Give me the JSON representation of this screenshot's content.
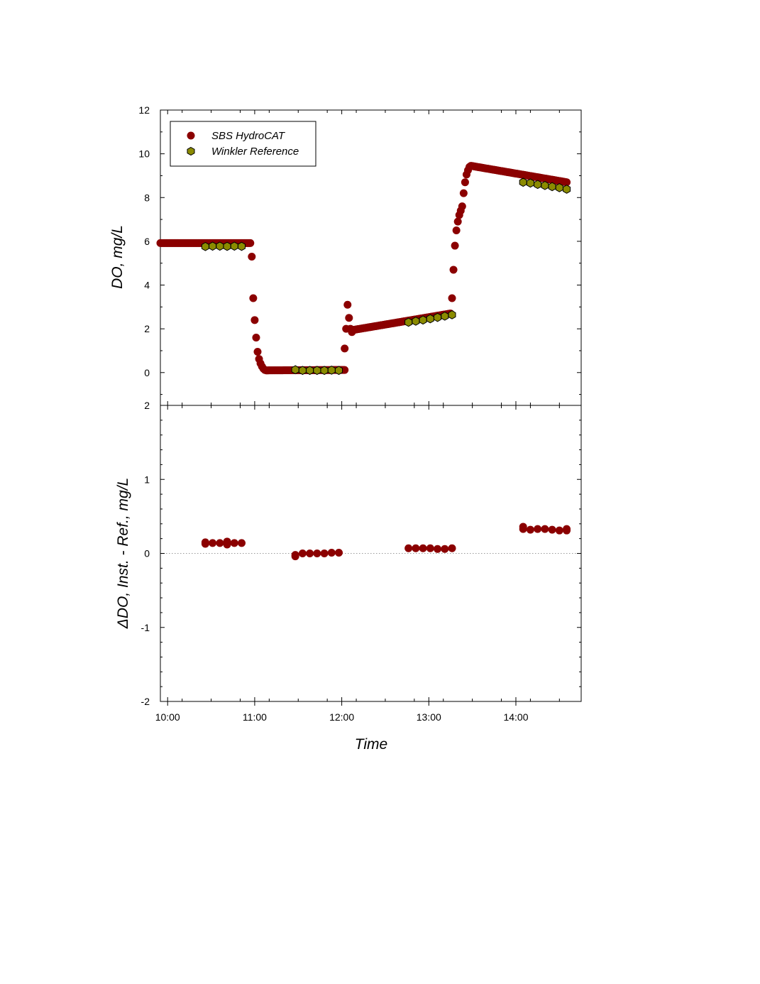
{
  "chart_data": [
    {
      "type": "scatter",
      "panel": "top",
      "xlabel": "",
      "ylabel": "DO, mg/L",
      "ylim": [
        -1.5,
        12
      ],
      "yticks": [
        0,
        2,
        4,
        6,
        8,
        10,
        12
      ],
      "xlim": [
        "09:55",
        "14:45"
      ],
      "legend": {
        "placement": "top-left",
        "entries": [
          "SBS HydroCAT",
          "Winkler Reference"
        ]
      },
      "colors": {
        "hydrocat": "#8b0000",
        "winkler": "#8b8b00"
      },
      "series": [
        {
          "name": "SBS HydroCAT",
          "segments": [
            {
              "start": "09:55",
              "end": "10:57",
              "values": [
                5.92,
                5.92
              ]
            },
            {
              "points": [
                [
                  "10:58",
                  5.3
                ],
                [
                  "10:59",
                  3.4
                ],
                [
                  "11:00",
                  2.4
                ],
                [
                  "11:01",
                  1.6
                ],
                [
                  "11:02",
                  0.95
                ],
                [
                  "11:03",
                  0.62
                ],
                [
                  "11:04",
                  0.42
                ],
                [
                  "11:05",
                  0.28
                ],
                [
                  "11:06",
                  0.18
                ],
                [
                  "11:07",
                  0.12
                ]
              ]
            },
            {
              "start": "11:08",
              "end": "12:02",
              "values": [
                0.1,
                0.12
              ]
            },
            {
              "points": [
                [
                  "12:02",
                  1.1
                ],
                [
                  "12:03",
                  2.0
                ],
                [
                  "12:04",
                  3.1
                ],
                [
                  "12:05",
                  2.5
                ],
                [
                  "12:06",
                  2.0
                ],
                [
                  "12:07",
                  1.85
                ]
              ]
            },
            {
              "start": "12:08",
              "end": "13:15",
              "values": [
                1.95,
                2.7
              ]
            },
            {
              "points": [
                [
                  "13:16",
                  3.4
                ],
                [
                  "13:17",
                  4.7
                ],
                [
                  "13:18",
                  5.8
                ],
                [
                  "13:19",
                  6.5
                ],
                [
                  "13:20",
                  6.9
                ],
                [
                  "13:21",
                  7.2
                ],
                [
                  "13:22",
                  7.4
                ],
                [
                  "13:23",
                  7.6
                ],
                [
                  "13:24",
                  8.2
                ],
                [
                  "13:25",
                  8.7
                ],
                [
                  "13:26",
                  9.05
                ],
                [
                  "13:27",
                  9.25
                ],
                [
                  "13:28",
                  9.4
                ]
              ]
            },
            {
              "start": "13:29",
              "end": "14:35",
              "values": [
                9.45,
                8.7
              ]
            }
          ]
        },
        {
          "name": "Winkler Reference",
          "points": [
            [
              "10:26",
              5.76
            ],
            [
              "10:31",
              5.78
            ],
            [
              "10:36",
              5.78
            ],
            [
              "10:41",
              5.77
            ],
            [
              "10:46",
              5.78
            ],
            [
              "10:51",
              5.77
            ],
            [
              "11:28",
              0.13
            ],
            [
              "11:33",
              0.1
            ],
            [
              "11:38",
              0.1
            ],
            [
              "11:43",
              0.1
            ],
            [
              "11:48",
              0.1
            ],
            [
              "11:53",
              0.11
            ],
            [
              "11:58",
              0.1
            ],
            [
              "12:46",
              2.3
            ],
            [
              "12:51",
              2.35
            ],
            [
              "12:56",
              2.4
            ],
            [
              "13:01",
              2.46
            ],
            [
              "13:06",
              2.52
            ],
            [
              "13:11",
              2.58
            ],
            [
              "13:16",
              2.64
            ],
            [
              "14:05",
              8.7
            ],
            [
              "14:10",
              8.66
            ],
            [
              "14:15",
              8.6
            ],
            [
              "14:20",
              8.55
            ],
            [
              "14:25",
              8.5
            ],
            [
              "14:30",
              8.45
            ],
            [
              "14:35",
              8.38
            ]
          ]
        }
      ]
    },
    {
      "type": "scatter",
      "panel": "bottom",
      "xlabel": "Time",
      "ylabel": "ΔDO, Inst. - Ref., mg/L",
      "ylim": [
        -2,
        2
      ],
      "yticks": [
        -2,
        -1,
        0,
        1,
        2
      ],
      "xlim": [
        "09:55",
        "14:45"
      ],
      "xticks": [
        "10:00",
        "11:00",
        "12:00",
        "13:00",
        "14:00"
      ],
      "reference_line": 0,
      "series": [
        {
          "name": "",
          "points": [
            [
              "10:26",
              0.15
            ],
            [
              "10:26",
              0.13
            ],
            [
              "10:31",
              0.14
            ],
            [
              "10:36",
              0.14
            ],
            [
              "10:41",
              0.16
            ],
            [
              "10:41",
              0.12
            ],
            [
              "10:46",
              0.14
            ],
            [
              "10:51",
              0.14
            ],
            [
              "11:28",
              -0.04
            ],
            [
              "11:28",
              -0.02
            ],
            [
              "11:33",
              0.0
            ],
            [
              "11:38",
              0.0
            ],
            [
              "11:43",
              0.0
            ],
            [
              "11:48",
              0.0
            ],
            [
              "11:53",
              0.01
            ],
            [
              "11:58",
              0.01
            ],
            [
              "12:46",
              0.07
            ],
            [
              "12:51",
              0.07
            ],
            [
              "12:56",
              0.07
            ],
            [
              "13:01",
              0.07
            ],
            [
              "13:06",
              0.06
            ],
            [
              "13:11",
              0.06
            ],
            [
              "13:16",
              0.07
            ],
            [
              "14:05",
              0.36
            ],
            [
              "14:05",
              0.33
            ],
            [
              "14:10",
              0.32
            ],
            [
              "14:15",
              0.33
            ],
            [
              "14:20",
              0.33
            ],
            [
              "14:25",
              0.32
            ],
            [
              "14:30",
              0.31
            ],
            [
              "14:35",
              0.33
            ],
            [
              "14:35",
              0.31
            ]
          ]
        }
      ]
    }
  ]
}
